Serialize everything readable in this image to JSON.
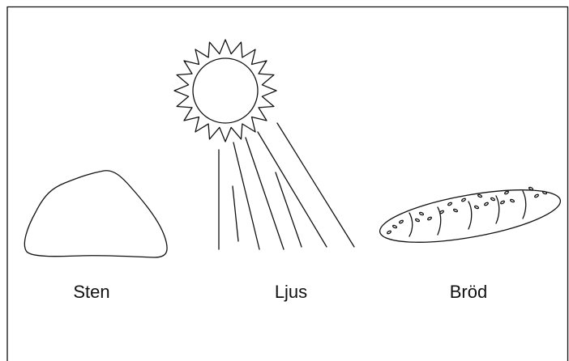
{
  "items": [
    {
      "label": "Sten"
    },
    {
      "label": "Ljus"
    },
    {
      "label": "Bröd"
    }
  ]
}
